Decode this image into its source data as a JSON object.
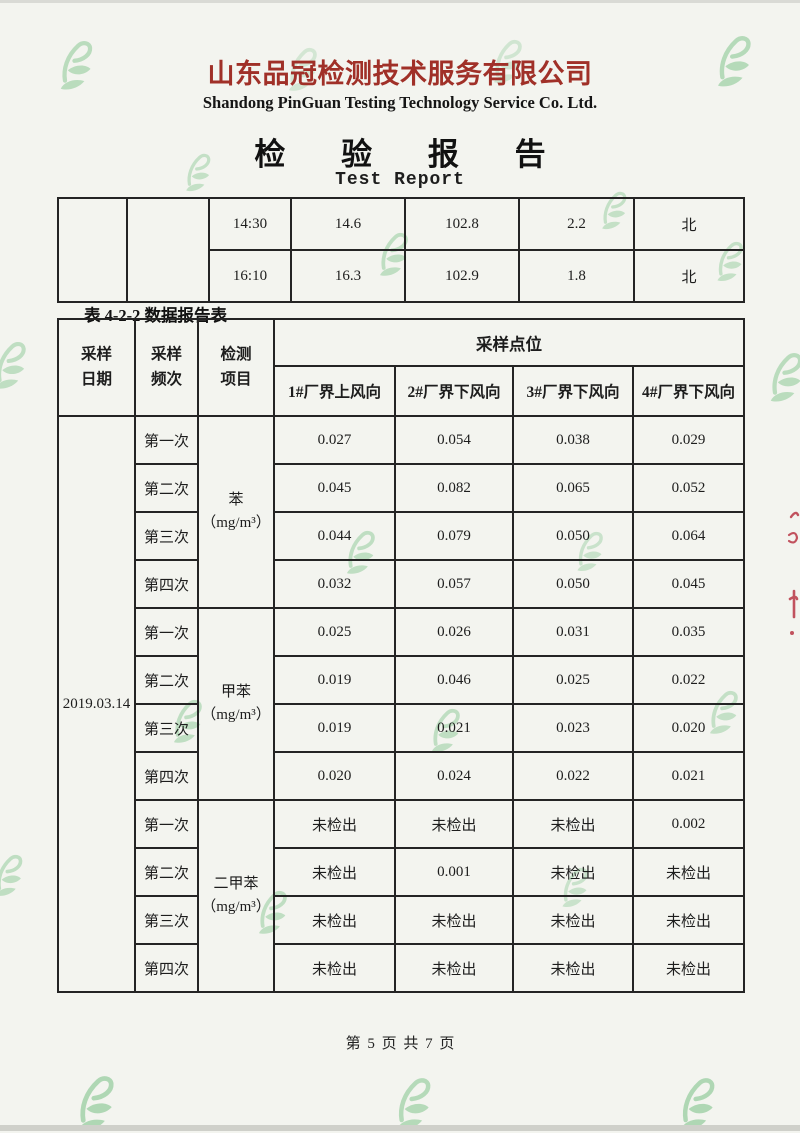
{
  "header": {
    "company_cn": "山东品冠检测技术服务有限公司",
    "company_en": "Shandong PinGuan Testing Technology Service Co. Ltd.",
    "report_title_cn": "检 验 报 告",
    "report_title_en": "Test Report"
  },
  "colors": {
    "company_red": "#a03028",
    "watermark_green": "#8cc996",
    "ink": "#1d1d1d"
  },
  "top_table": {
    "rows": [
      {
        "time": "14:30",
        "temperature": "14.6",
        "pressure": "102.8",
        "wind_speed": "2.2",
        "wind_direction": "北"
      },
      {
        "time": "16:10",
        "temperature": "16.3",
        "pressure": "102.9",
        "wind_speed": "1.8",
        "wind_direction": "北"
      }
    ]
  },
  "table_caption": "表 4-2-2 数据报告表",
  "main_table": {
    "headers": {
      "col1": "采样\n日期",
      "col2": "采样\n频次",
      "col3": "检测\n项目",
      "group": "采样点位",
      "points": [
        "1#厂界上风向",
        "2#厂界下风向",
        "3#厂界下风向",
        "4#厂界下风向"
      ]
    },
    "sample_date": "2019.03.14",
    "groups": [
      {
        "item": "苯\n（mg/m³）",
        "rows": [
          {
            "freq": "第一次",
            "values": [
              "0.027",
              "0.054",
              "0.038",
              "0.029"
            ]
          },
          {
            "freq": "第二次",
            "values": [
              "0.045",
              "0.082",
              "0.065",
              "0.052"
            ]
          },
          {
            "freq": "第三次",
            "values": [
              "0.044",
              "0.079",
              "0.050",
              "0.064"
            ]
          },
          {
            "freq": "第四次",
            "values": [
              "0.032",
              "0.057",
              "0.050",
              "0.045"
            ]
          }
        ]
      },
      {
        "item": "甲苯\n（mg/m³）",
        "rows": [
          {
            "freq": "第一次",
            "values": [
              "0.025",
              "0.026",
              "0.031",
              "0.035"
            ]
          },
          {
            "freq": "第二次",
            "values": [
              "0.019",
              "0.046",
              "0.025",
              "0.022"
            ]
          },
          {
            "freq": "第三次",
            "values": [
              "0.019",
              "0.021",
              "0.023",
              "0.020"
            ]
          },
          {
            "freq": "第四次",
            "values": [
              "0.020",
              "0.024",
              "0.022",
              "0.021"
            ]
          }
        ]
      },
      {
        "item": "二甲苯\n（mg/m³）",
        "rows": [
          {
            "freq": "第一次",
            "values": [
              "未检出",
              "未检出",
              "未检出",
              "0.002"
            ]
          },
          {
            "freq": "第二次",
            "values": [
              "未检出",
              "0.001",
              "未检出",
              "未检出"
            ]
          },
          {
            "freq": "第三次",
            "values": [
              "未检出",
              "未检出",
              "未检出",
              "未检出"
            ]
          },
          {
            "freq": "第四次",
            "values": [
              "未检出",
              "未检出",
              "未检出",
              "未检出"
            ]
          }
        ]
      }
    ]
  },
  "footer": {
    "page_indicator": "第 5 页 共 7 页"
  }
}
